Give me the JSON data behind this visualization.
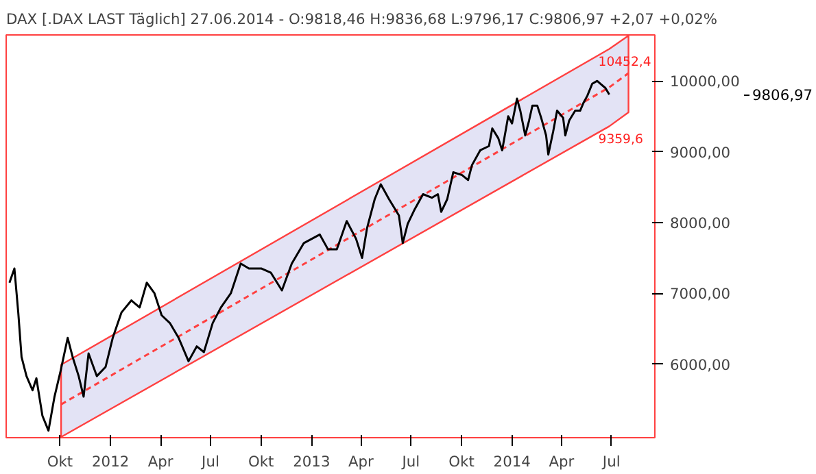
{
  "chart_data": {
    "type": "line",
    "title": "DAX [.DAX LAST Täglich] 27.06.2014 - O:9818,46 H:9836,68 L:9796,17 C:9806,97 +2,07 +0,02%",
    "xlim": [
      "2011-06-25",
      "2014-09-18"
    ],
    "ylim": [
      4960,
      10650
    ],
    "xticks": [
      {
        "value": "2011-10-01",
        "label": "Okt"
      },
      {
        "value": "2012-01-01",
        "label": "2012"
      },
      {
        "value": "2012-04-01",
        "label": "Apr"
      },
      {
        "value": "2012-07-01",
        "label": "Jul"
      },
      {
        "value": "2012-10-01",
        "label": "Okt"
      },
      {
        "value": "2013-01-01",
        "label": "2013"
      },
      {
        "value": "2013-04-01",
        "label": "Apr"
      },
      {
        "value": "2013-07-01",
        "label": "Jul"
      },
      {
        "value": "2013-10-01",
        "label": "Okt"
      },
      {
        "value": "2014-01-01",
        "label": "2014"
      },
      {
        "value": "2014-04-01",
        "label": "Apr"
      },
      {
        "value": "2014-07-01",
        "label": "Jul"
      }
    ],
    "yticks": [
      {
        "value": 6000,
        "label": "6000,00"
      },
      {
        "value": 7000,
        "label": "7000,00"
      },
      {
        "value": 8000,
        "label": "8000,00"
      },
      {
        "value": 9000,
        "label": "9000,00"
      },
      {
        "value": 10000,
        "label": "10000,00"
      }
    ],
    "grid": false,
    "marker": "none",
    "series": [
      {
        "color": "#ff4040",
        "line_style": "dashed",
        "x": [
          "2011-10-03",
          "2014-06-27",
          "2014-08-01"
        ],
        "values": [
          5430,
          9910,
          10110
        ],
        "lower": [
          4970,
          9359.6,
          9557
        ],
        "upper": [
          5990,
          10452.4,
          10640
        ]
      },
      {
        "color": "#000000",
        "line_style": "solid",
        "x": [
          "2011-07-01",
          "2011-07-10",
          "2011-07-17",
          "2011-07-23",
          "2011-08-01",
          "2011-08-12",
          "2011-08-19",
          "2011-08-30",
          "2011-09-10",
          "2011-09-21",
          "2011-10-02",
          "2011-10-15",
          "2011-10-24",
          "2011-11-04",
          "2011-11-13",
          "2011-11-22",
          "2011-12-07",
          "2011-12-23",
          "2012-01-05",
          "2012-01-21",
          "2012-02-08",
          "2012-02-23",
          "2012-03-07",
          "2012-03-21",
          "2012-04-03",
          "2012-04-18",
          "2012-05-04",
          "2012-05-22",
          "2012-06-06",
          "2012-06-19",
          "2012-07-05",
          "2012-07-20",
          "2012-08-07",
          "2012-08-25",
          "2012-09-09",
          "2012-10-02",
          "2012-10-19",
          "2012-11-08",
          "2012-11-26",
          "2012-12-18",
          "2013-01-16",
          "2013-01-31",
          "2013-02-16",
          "2013-03-06",
          "2013-03-23",
          "2013-04-03",
          "2013-04-12",
          "2013-04-26",
          "2013-05-07",
          "2013-05-22",
          "2013-06-02",
          "2013-06-09",
          "2013-06-16",
          "2013-06-25",
          "2013-07-08",
          "2013-07-23",
          "2013-08-08",
          "2013-08-19",
          "2013-08-25",
          "2013-09-05",
          "2013-09-16",
          "2013-10-02",
          "2013-10-13",
          "2013-10-20",
          "2013-11-04",
          "2013-11-20",
          "2013-11-26",
          "2013-12-07",
          "2013-12-14",
          "2013-12-25",
          "2014-01-01",
          "2014-01-10",
          "2014-01-16",
          "2014-01-25",
          "2014-02-01",
          "2014-02-07",
          "2014-02-16",
          "2014-02-23",
          "2014-03-04",
          "2014-03-08",
          "2014-03-17",
          "2014-03-24",
          "2014-04-04",
          "2014-04-08",
          "2014-04-15",
          "2014-04-26",
          "2014-05-05",
          "2014-05-11",
          "2014-05-18",
          "2014-05-27",
          "2014-06-05",
          "2014-06-11",
          "2014-06-20",
          "2014-06-27"
        ],
        "values": [
          7150,
          7350,
          6730,
          6100,
          5830,
          5630,
          5800,
          5270,
          5060,
          5540,
          5900,
          6370,
          6100,
          5830,
          5540,
          6150,
          5830,
          5960,
          6370,
          6730,
          6900,
          6800,
          7150,
          7000,
          6690,
          6580,
          6370,
          6040,
          6250,
          6170,
          6580,
          6800,
          7000,
          7420,
          7350,
          7350,
          7290,
          7040,
          7420,
          7710,
          7830,
          7620,
          7620,
          8020,
          7770,
          7500,
          7920,
          8330,
          8540,
          8330,
          8190,
          8100,
          7710,
          7980,
          8190,
          8400,
          8350,
          8400,
          8150,
          8330,
          8710,
          8670,
          8600,
          8810,
          9020,
          9080,
          9330,
          9190,
          9020,
          9500,
          9400,
          9750,
          9580,
          9230,
          9440,
          9650,
          9650,
          9480,
          9230,
          8960,
          9290,
          9580,
          9480,
          9230,
          9440,
          9580,
          9580,
          9690,
          9790,
          9960,
          10000,
          9960,
          9900,
          9806.97
        ]
      }
    ],
    "annotations": [
      {
        "text": "10452,4",
        "x": "2014-06-27",
        "y": 10452.4
      },
      {
        "text": "9359,6",
        "x": "2014-06-27",
        "y": 9359.6
      },
      "9806,97"
    ]
  }
}
